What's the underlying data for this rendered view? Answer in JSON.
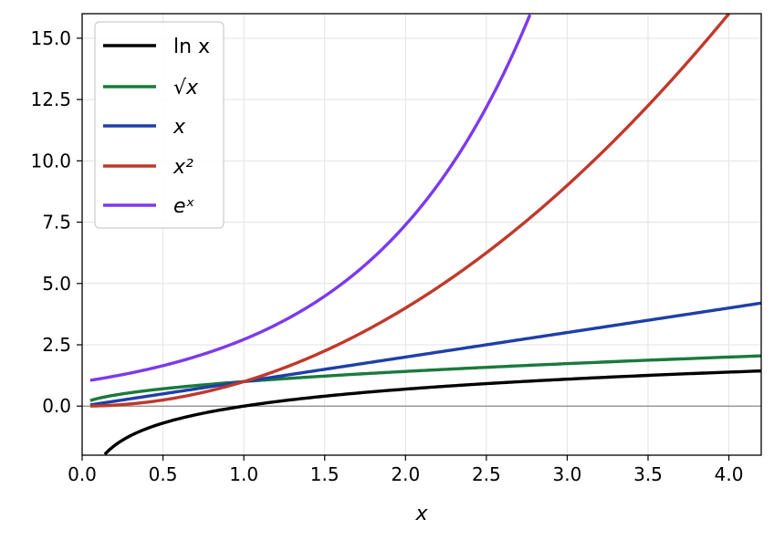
{
  "chart_data": {
    "type": "line",
    "title": "",
    "xlabel": "x",
    "ylabel": "",
    "xlim": [
      0.0,
      4.2
    ],
    "ylim": [
      -2.0,
      16.0
    ],
    "grid": true,
    "legend_position": "top-left",
    "x_ticks": [
      "0.0",
      "0.5",
      "1.0",
      "1.5",
      "2.0",
      "2.5",
      "3.0",
      "3.5",
      "4.0"
    ],
    "y_ticks": [
      "0.0",
      "2.5",
      "5.0",
      "7.5",
      "10.0",
      "12.5",
      "15.0"
    ],
    "series": [
      {
        "name": "ln x",
        "color": "#000000",
        "x": [
          0.14,
          0.2,
          0.3,
          0.5,
          0.75,
          1.0,
          1.5,
          2.0,
          2.5,
          3.0,
          3.5,
          4.0,
          4.2
        ],
        "y": [
          -1.97,
          -1.61,
          -1.2,
          -0.69,
          -0.29,
          0.0,
          0.41,
          0.69,
          0.92,
          1.1,
          1.25,
          1.39,
          1.44
        ]
      },
      {
        "name": "√x",
        "color": "#1a7a3c",
        "x": [
          0.05,
          0.1,
          0.2,
          0.3,
          0.5,
          0.75,
          1.0,
          1.5,
          2.0,
          2.5,
          3.0,
          3.5,
          4.0,
          4.2
        ],
        "y": [
          0.22,
          0.32,
          0.45,
          0.55,
          0.71,
          0.87,
          1.0,
          1.22,
          1.41,
          1.58,
          1.73,
          1.87,
          2.0,
          2.05
        ]
      },
      {
        "name": "x",
        "color": "#1f3fa8",
        "x": [
          0.05,
          1.0,
          2.0,
          3.0,
          4.0,
          4.2
        ],
        "y": [
          0.05,
          1.0,
          2.0,
          3.0,
          4.0,
          4.2
        ]
      },
      {
        "name": "x²",
        "color": "#c0392b",
        "x": [
          0.05,
          0.25,
          0.5,
          0.75,
          1.0,
          1.25,
          1.5,
          1.75,
          2.0,
          2.25,
          2.5,
          2.75,
          3.0,
          3.25,
          3.5,
          3.75,
          4.0
        ],
        "y": [
          0.0,
          0.06,
          0.25,
          0.56,
          1.0,
          1.56,
          2.25,
          3.06,
          4.0,
          5.06,
          6.25,
          7.56,
          9.0,
          10.56,
          12.25,
          14.06,
          16.0
        ]
      },
      {
        "name": "eˣ",
        "color": "#7c3aed",
        "x": [
          0.05,
          0.25,
          0.5,
          0.75,
          1.0,
          1.25,
          1.5,
          1.75,
          2.0,
          2.25,
          2.5,
          2.6,
          2.7,
          2.77
        ],
        "y": [
          1.05,
          1.28,
          1.65,
          2.12,
          2.72,
          3.49,
          4.48,
          5.75,
          7.39,
          9.49,
          12.18,
          13.46,
          14.88,
          16.0
        ]
      }
    ]
  }
}
